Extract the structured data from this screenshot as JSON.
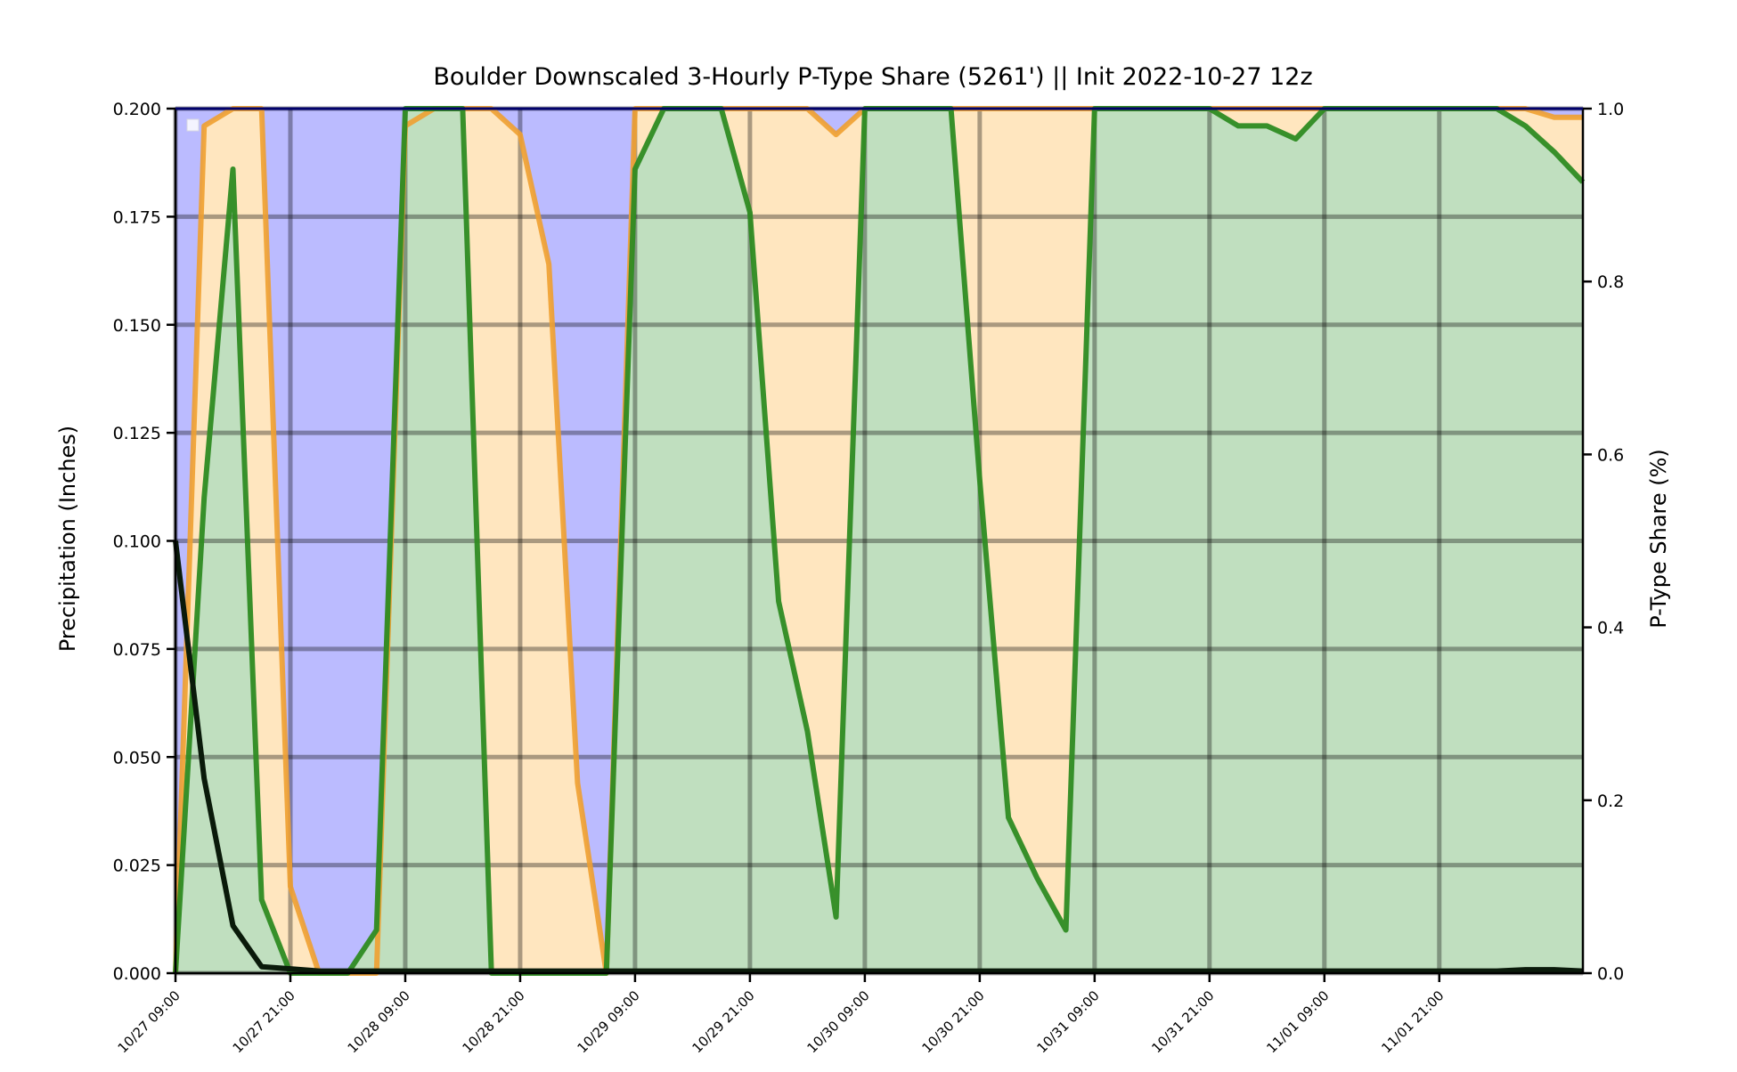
{
  "chart_data": {
    "type": "area",
    "title": "Boulder Downscaled 3-Hourly P-Type Share (5261') || Init 2022-10-27 12z",
    "ylabel_left": "Precipitation (Inches)",
    "ylabel_right": "P-Type Share (%)",
    "xlabel": "",
    "x_start": "10/27 09:00",
    "x_step_hours": 3,
    "x_ticks": [
      "10/27 09:00",
      "10/27 21:00",
      "10/28 09:00",
      "10/28 21:00",
      "10/29 09:00",
      "10/29 21:00",
      "10/30 09:00",
      "10/30 21:00",
      "10/31 09:00",
      "10/31 21:00",
      "11/01 09:00",
      "11/01 21:00"
    ],
    "x_tick_every": 4,
    "ylim_left": [
      0,
      0.2
    ],
    "ylim_right": [
      0,
      1.0
    ],
    "yticks_left": [
      "0.000",
      "0.025",
      "0.050",
      "0.075",
      "0.100",
      "0.125",
      "0.150",
      "0.175",
      "0.200"
    ],
    "yticks_right": [
      "0.0",
      "0.2",
      "0.4",
      "0.6",
      "0.8",
      "1.0"
    ],
    "grid": true,
    "colors": {
      "snow_fill": "#bbbbff",
      "mix_fill": "#ffe6bf",
      "rain_fill": "#c0dfbf",
      "mix_line": "#f0a030",
      "rain_line": "#2e8b22",
      "precip_line": "#0a1a0a",
      "grid": "#00000055"
    },
    "series": [
      {
        "key": "mix_share",
        "axis": "right",
        "values": [
          0.0,
          0.98,
          1.0,
          1.0,
          0.1,
          0.0,
          0.0,
          0.0,
          0.98,
          1.0,
          1.0,
          1.0,
          0.97,
          0.82,
          0.22,
          0.0,
          1.0,
          1.0,
          1.0,
          1.0,
          1.0,
          1.0,
          1.0,
          0.97,
          1.0,
          1.0,
          1.0,
          1.0,
          1.0,
          1.0,
          1.0,
          1.0,
          1.0,
          1.0,
          1.0,
          1.0,
          1.0,
          1.0,
          1.0,
          1.0,
          1.0,
          1.0,
          1.0,
          1.0,
          1.0,
          1.0,
          1.0,
          1.0,
          0.99,
          0.99
        ]
      },
      {
        "key": "rain_share",
        "axis": "right",
        "values": [
          0.0,
          0.55,
          0.93,
          0.085,
          0.0,
          0.0,
          0.0,
          0.05,
          1.0,
          1.0,
          1.0,
          0.0,
          0.0,
          0.0,
          0.0,
          0.0,
          0.93,
          1.0,
          1.0,
          1.0,
          0.88,
          0.43,
          0.28,
          0.065,
          1.0,
          1.0,
          1.0,
          1.0,
          0.57,
          0.18,
          0.11,
          0.05,
          1.0,
          1.0,
          1.0,
          1.0,
          1.0,
          0.98,
          0.98,
          0.965,
          1.0,
          1.0,
          1.0,
          1.0,
          1.0,
          1.0,
          1.0,
          0.98,
          0.95,
          0.915
        ]
      },
      {
        "key": "precip",
        "axis": "left",
        "values": [
          0.1,
          0.045,
          0.011,
          0.0015,
          0.001,
          0.0005,
          0.0005,
          0.0005,
          0.0005,
          0.0005,
          0.0005,
          0.0005,
          0.0005,
          0.0005,
          0.0005,
          0.0005,
          0.0005,
          0.0005,
          0.0005,
          0.0005,
          0.0005,
          0.0005,
          0.0005,
          0.0005,
          0.0005,
          0.0005,
          0.0005,
          0.0005,
          0.0005,
          0.0005,
          0.0005,
          0.0005,
          0.0005,
          0.0005,
          0.0005,
          0.0005,
          0.0005,
          0.0005,
          0.0005,
          0.0005,
          0.0005,
          0.0005,
          0.0005,
          0.0005,
          0.0005,
          0.0005,
          0.0005,
          0.0008,
          0.0008,
          0.0005
        ]
      }
    ]
  }
}
